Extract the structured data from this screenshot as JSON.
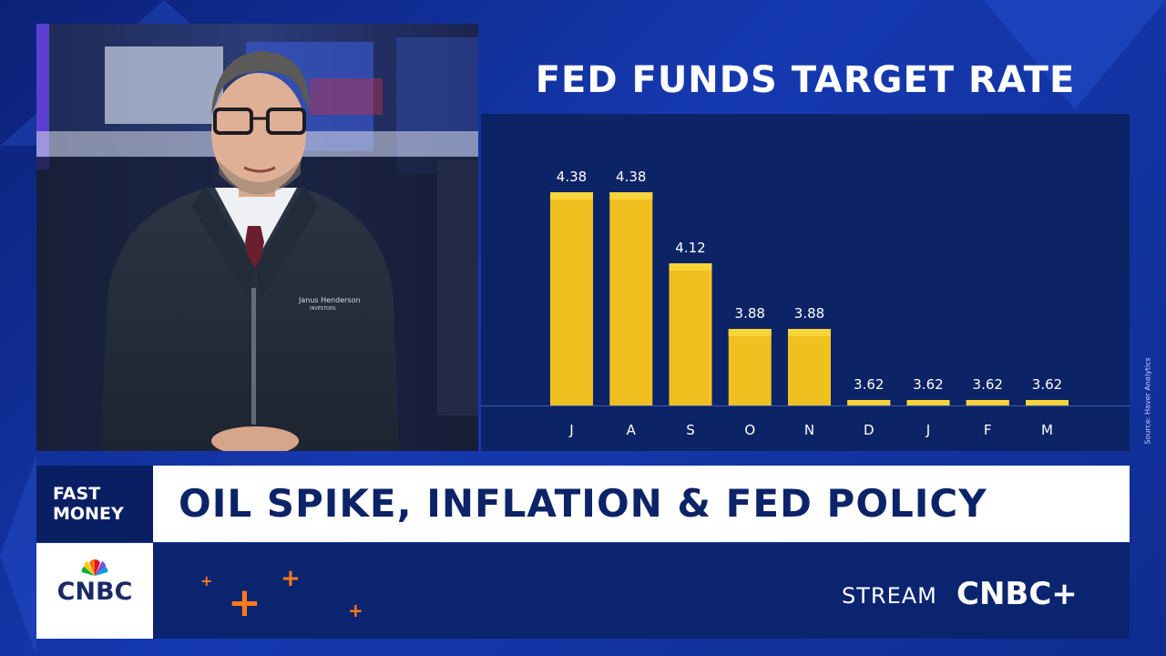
{
  "chart_data": {
    "type": "bar",
    "title": "FED FUNDS TARGET RATE",
    "categories": [
      "J",
      "A",
      "S",
      "O",
      "N",
      "D",
      "J",
      "F",
      "M"
    ],
    "values": [
      4.38,
      4.38,
      4.12,
      3.88,
      3.88,
      3.62,
      3.62,
      3.62,
      3.62
    ],
    "value_labels": [
      "4.38",
      "4.38",
      "4.12",
      "3.88",
      "3.88",
      "3.62",
      "3.62",
      "3.62",
      "3.62"
    ],
    "ylim": [
      3.6,
      4.4
    ],
    "bar_color": "#f0c020",
    "bar_cap_color": "#f7d43a",
    "axis_color": "#3a5bb0",
    "grid": false,
    "legend": "none",
    "source": "Source: Haver Analytics"
  },
  "lower_third": {
    "show_name_line1": "FAST",
    "show_name_line2": "MONEY",
    "headline": "OIL SPIKE, INFLATION & FED POLICY",
    "stream_label": "STREAM",
    "stream_brand": "CNBC+",
    "network_logo": "CNBC"
  },
  "guest": {
    "jacket_logo_line1": "Janus Henderson",
    "jacket_logo_line2": "INVESTORS"
  },
  "colors": {
    "background": "#1539b0",
    "chart_panel": "#0c2466",
    "headline_text": "#0d2368",
    "accent_orange": "#ff7a1a"
  },
  "icons": [
    "plus-icon",
    "nbc-peacock-icon"
  ]
}
